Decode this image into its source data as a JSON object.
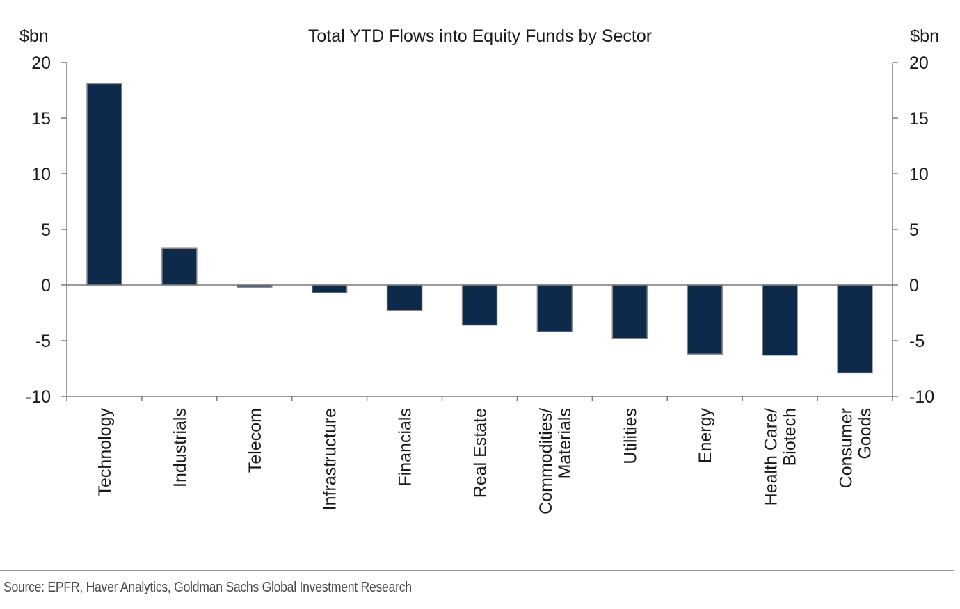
{
  "chart_data": {
    "type": "bar",
    "title": "Total YTD Flows into Equity Funds by Sector",
    "left_axis_unit": "$bn",
    "right_axis_unit": "$bn",
    "ylim": [
      -10,
      20
    ],
    "yticks": [
      "20",
      "15",
      "10",
      "5",
      "0",
      "-5",
      "-10"
    ],
    "categories": [
      [
        "Technology"
      ],
      [
        "Industrials"
      ],
      [
        "Telecom"
      ],
      [
        "Infrastructure"
      ],
      [
        "Financials"
      ],
      [
        "Real Estate"
      ],
      [
        "Commodities/",
        "Materials"
      ],
      [
        "Utilities"
      ],
      [
        "Energy"
      ],
      [
        "Health Care/",
        "Biotech"
      ],
      [
        "Consumer",
        "Goods"
      ]
    ],
    "values": [
      18.1,
      3.3,
      -0.2,
      -0.7,
      -2.3,
      -3.6,
      -4.2,
      -4.8,
      -6.2,
      -6.3,
      -7.9
    ],
    "bar_color": "#0e2a4a",
    "bar_edge_color": "#8a8a8a",
    "grid": false,
    "legend": "none"
  },
  "source": "Source: EPFR, Haver Analytics, Goldman Sachs Global Investment Research"
}
